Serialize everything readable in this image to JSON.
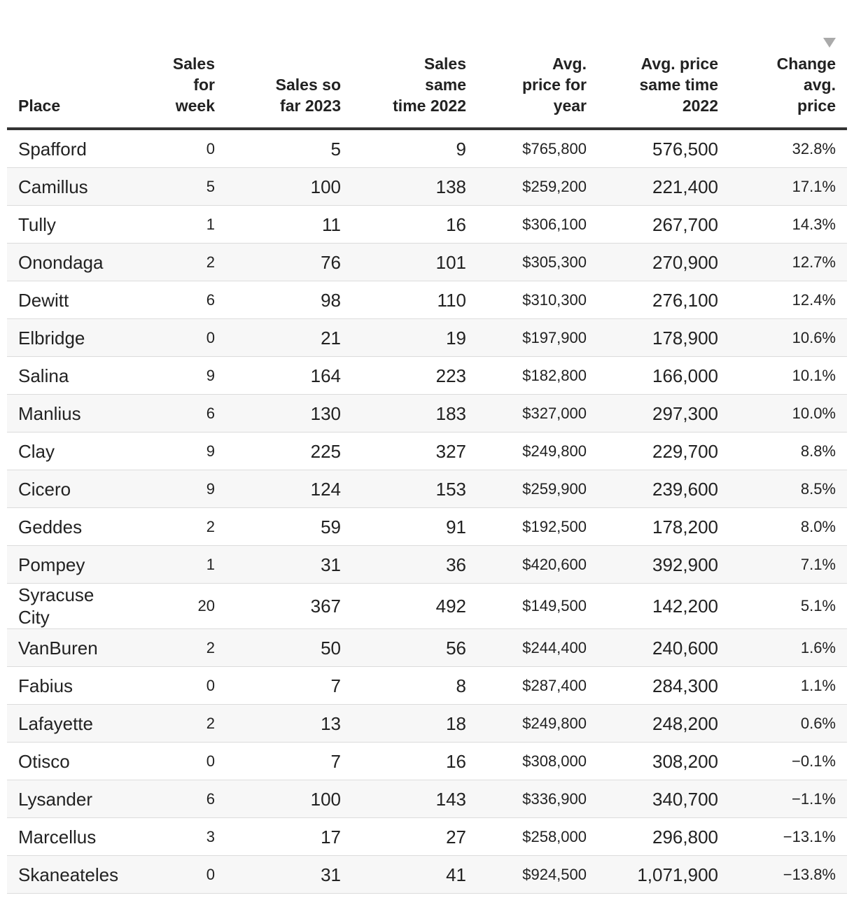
{
  "table": {
    "headers": [
      "Place",
      "Sales\nfor\nweek",
      "Sales so\nfar 2023",
      "Sales\nsame\ntime 2022",
      "Avg.\nprice for\nyear",
      "Avg. price\nsame time\n2022",
      "Change\navg.\nprice"
    ],
    "rows": [
      [
        "Spafford",
        "0",
        "5",
        "9",
        "$765,800",
        "576,500",
        "32.8%"
      ],
      [
        "Camillus",
        "5",
        "100",
        "138",
        "$259,200",
        "221,400",
        "17.1%"
      ],
      [
        "Tully",
        "1",
        "11",
        "16",
        "$306,100",
        "267,700",
        "14.3%"
      ],
      [
        "Onondaga",
        "2",
        "76",
        "101",
        "$305,300",
        "270,900",
        "12.7%"
      ],
      [
        "Dewitt",
        "6",
        "98",
        "110",
        "$310,300",
        "276,100",
        "12.4%"
      ],
      [
        "Elbridge",
        "0",
        "21",
        "19",
        "$197,900",
        "178,900",
        "10.6%"
      ],
      [
        "Salina",
        "9",
        "164",
        "223",
        "$182,800",
        "166,000",
        "10.1%"
      ],
      [
        "Manlius",
        "6",
        "130",
        "183",
        "$327,000",
        "297,300",
        "10.0%"
      ],
      [
        "Clay",
        "9",
        "225",
        "327",
        "$249,800",
        "229,700",
        "8.8%"
      ],
      [
        "Cicero",
        "9",
        "124",
        "153",
        "$259,900",
        "239,600",
        "8.5%"
      ],
      [
        "Geddes",
        "2",
        "59",
        "91",
        "$192,500",
        "178,200",
        "8.0%"
      ],
      [
        "Pompey",
        "1",
        "31",
        "36",
        "$420,600",
        "392,900",
        "7.1%"
      ],
      [
        "Syracuse City",
        "20",
        "367",
        "492",
        "$149,500",
        "142,200",
        "5.1%"
      ],
      [
        "VanBuren",
        "2",
        "50",
        "56",
        "$244,400",
        "240,600",
        "1.6%"
      ],
      [
        "Fabius",
        "0",
        "7",
        "8",
        "$287,400",
        "284,300",
        "1.1%"
      ],
      [
        "Lafayette",
        "2",
        "13",
        "18",
        "$249,800",
        "248,200",
        "0.6%"
      ],
      [
        "Otisco",
        "0",
        "7",
        "16",
        "$308,000",
        "308,200",
        "−0.1%"
      ],
      [
        "Lysander",
        "6",
        "100",
        "143",
        "$336,900",
        "340,700",
        "−1.1%"
      ],
      [
        "Marcellus",
        "3",
        "17",
        "27",
        "$258,000",
        "296,800",
        "−13.1%"
      ],
      [
        "Skaneateles",
        "0",
        "31",
        "41",
        "$924,500",
        "1,071,900",
        "−13.8%"
      ]
    ]
  }
}
